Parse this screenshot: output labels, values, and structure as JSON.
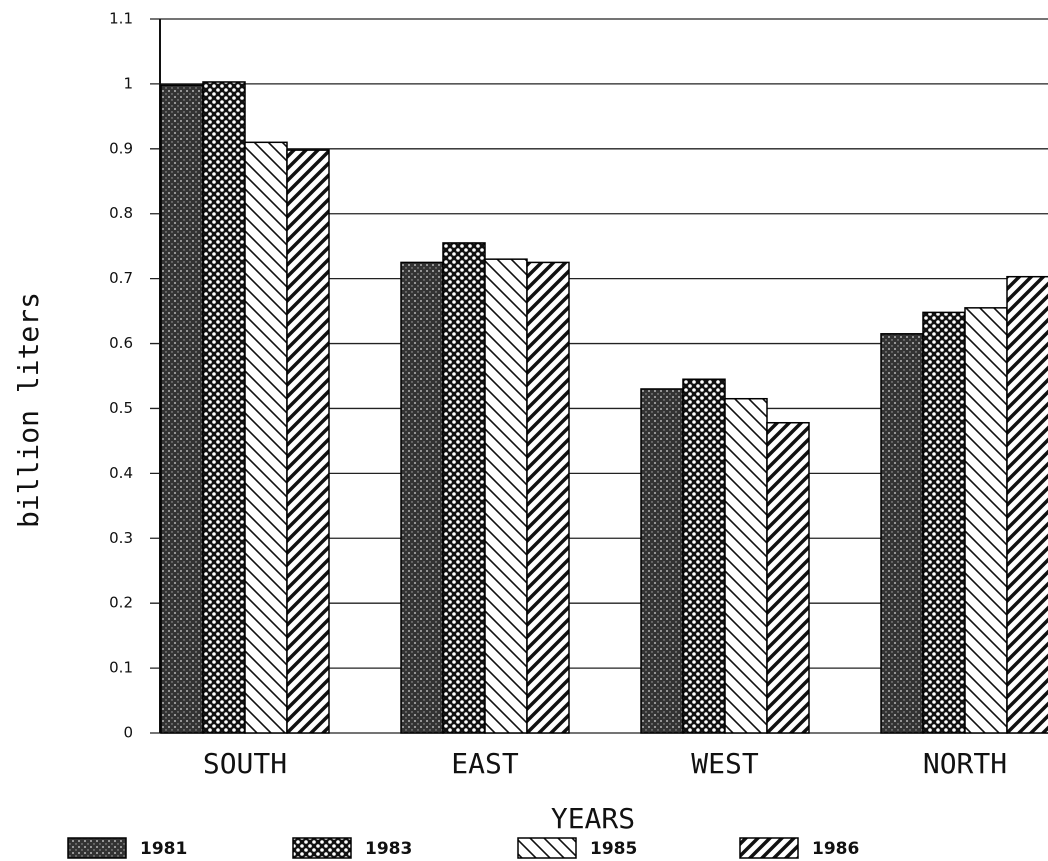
{
  "chart_data": {
    "type": "bar",
    "x_label": "YEARS",
    "y_label": "billion liters",
    "categories": [
      "SOUTH",
      "EAST",
      "WEST",
      "NORTH"
    ],
    "series": [
      {
        "name": "1981",
        "color": "#000000",
        "values": [
          0.998,
          0.725,
          0.53,
          0.615
        ]
      },
      {
        "name": "1983",
        "color": "#000000",
        "values": [
          1.003,
          0.755,
          0.545,
          0.648
        ]
      },
      {
        "name": "1985",
        "color": "#000000",
        "values": [
          0.91,
          0.73,
          0.515,
          0.655
        ]
      },
      {
        "name": "1986",
        "color": "#000000",
        "values": [
          0.898,
          0.725,
          0.478,
          0.703
        ]
      }
    ],
    "ylim": [
      0,
      1.1
    ],
    "yticks": [
      0,
      0.1,
      0.2,
      0.3,
      0.4,
      0.5,
      0.6,
      0.7,
      0.8,
      0.9,
      1,
      1.1
    ],
    "grid": true,
    "legend": "bottom"
  }
}
